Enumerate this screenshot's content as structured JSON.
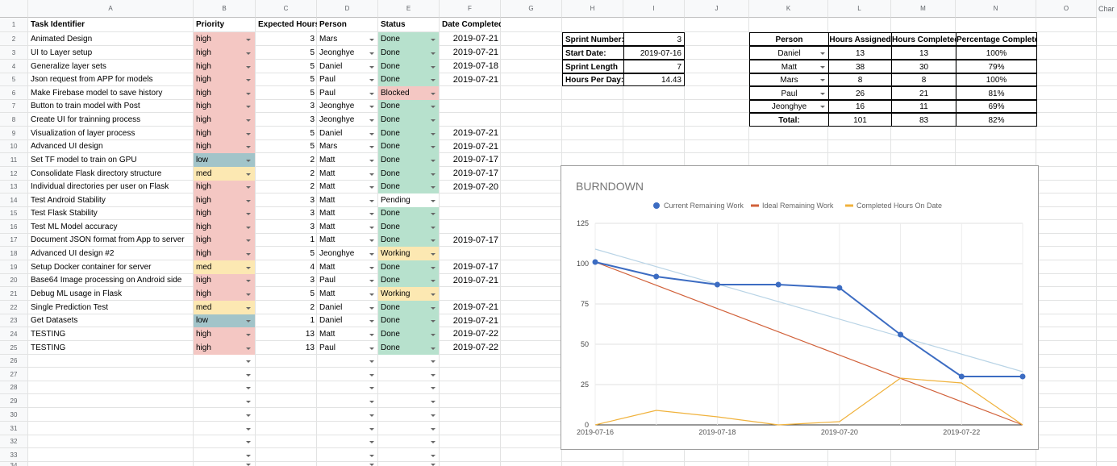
{
  "columns": [
    "A",
    "B",
    "C",
    "D",
    "E",
    "F",
    "G",
    "H",
    "I",
    "J",
    "K",
    "L",
    "M",
    "N",
    "O"
  ],
  "corner_text": "Char",
  "row_numbers": [
    "1",
    "2",
    "3",
    "4",
    "5",
    "6",
    "7",
    "8",
    "9",
    "10",
    "11",
    "12",
    "13",
    "14",
    "15",
    "16",
    "17",
    "18",
    "19",
    "20",
    "21",
    "22",
    "23",
    "24",
    "25",
    "26",
    "27",
    "28",
    "29",
    "30",
    "31",
    "32",
    "33",
    "34"
  ],
  "colors": {
    "high": "#f4c7c3",
    "low": "#a2c4c9",
    "med": "#fce8b2",
    "done": "#b7e1cd",
    "blocked": "#f4c7c3",
    "working": "#fce8b2",
    "pending": "#ffffff"
  },
  "headers": [
    "Task Identifier",
    "Priority",
    "Expected Hours",
    "Person",
    "Status",
    "Date Completed"
  ],
  "tasks": [
    [
      "Animated Design",
      "high",
      "3",
      "Mars",
      "Done",
      "2019-07-21"
    ],
    [
      "UI to Layer setup",
      "high",
      "5",
      "Jeonghye",
      "Done",
      "2019-07-21"
    ],
    [
      "Generalize layer sets",
      "high",
      "5",
      "Daniel",
      "Done",
      "2019-07-18"
    ],
    [
      "Json request from APP for models",
      "high",
      "5",
      "Paul",
      "Done",
      "2019-07-21"
    ],
    [
      "Make Firebase model to save history",
      "high",
      "5",
      "Paul",
      "Blocked",
      ""
    ],
    [
      "Button to train model with Post",
      "high",
      "3",
      "Jeonghye",
      "Done",
      ""
    ],
    [
      "Create UI for trainning process",
      "high",
      "3",
      "Jeonghye",
      "Done",
      ""
    ],
    [
      "Visualization of layer process",
      "high",
      "5",
      "Daniel",
      "Done",
      "2019-07-21"
    ],
    [
      "Advanced UI design",
      "high",
      "5",
      "Mars",
      "Done",
      "2019-07-21"
    ],
    [
      "Set TF model to train on GPU",
      "low",
      "2",
      "Matt",
      "Done",
      "2019-07-17"
    ],
    [
      "Consolidate Flask directory structure",
      "med",
      "2",
      "Matt",
      "Done",
      "2019-07-17"
    ],
    [
      "Individual directories per user on Flask",
      "high",
      "2",
      "Matt",
      "Done",
      "2019-07-20"
    ],
    [
      "Test Android Stability",
      "high",
      "3",
      "Matt",
      "Pending",
      ""
    ],
    [
      "Test Flask Stability",
      "high",
      "3",
      "Matt",
      "Done",
      ""
    ],
    [
      "Test ML Model accuracy",
      "high",
      "3",
      "Matt",
      "Done",
      ""
    ],
    [
      "Document JSON format from App to server",
      "high",
      "1",
      "Matt",
      "Done",
      "2019-07-17"
    ],
    [
      "Advanced UI design #2",
      "high",
      "5",
      "Jeonghye",
      "Working",
      ""
    ],
    [
      "Setup Docker container for server",
      "med",
      "4",
      "Matt",
      "Done",
      "2019-07-17"
    ],
    [
      "Base64 Image processing on Android side",
      "high",
      "3",
      "Paul",
      "Done",
      "2019-07-21"
    ],
    [
      "Debug ML usage in Flask",
      "high",
      "5",
      "Matt",
      "Working",
      ""
    ],
    [
      "Single Prediction Test",
      "med",
      "2",
      "Daniel",
      "Done",
      "2019-07-21"
    ],
    [
      "Get Datasets",
      "low",
      "1",
      "Daniel",
      "Done",
      "2019-07-21"
    ],
    [
      "TESTING",
      "high",
      "13",
      "Matt",
      "Done",
      "2019-07-22"
    ],
    [
      "TESTING",
      "high",
      "13",
      "Paul",
      "Done",
      "2019-07-22"
    ]
  ],
  "sprint": [
    [
      "Sprint Number:",
      "3"
    ],
    [
      "Start Date:",
      "2019-07-16"
    ],
    [
      "Sprint Length",
      "7"
    ],
    [
      "Hours Per Day:",
      "14.43"
    ]
  ],
  "people_headers": [
    "Person",
    "Hours Assigned",
    "Hours Completed",
    "Percentage Complete"
  ],
  "people": [
    [
      "Daniel",
      "13",
      "13",
      "100%"
    ],
    [
      "Matt",
      "38",
      "30",
      "79%"
    ],
    [
      "Mars",
      "8",
      "8",
      "100%"
    ],
    [
      "Paul",
      "26",
      "21",
      "81%"
    ],
    [
      "Jeonghye",
      "16",
      "11",
      "69%"
    ]
  ],
  "people_total": [
    "Total:",
    "101",
    "83",
    "82%"
  ],
  "chart_data": {
    "type": "line",
    "title": "BURNDOWN",
    "x": [
      "2019-07-16",
      "2019-07-17",
      "2019-07-18",
      "2019-07-19",
      "2019-07-20",
      "2019-07-21",
      "2019-07-22",
      "2019-07-23"
    ],
    "x_tick_labels": [
      "2019-07-16",
      "2019-07-18",
      "2019-07-20",
      "2019-07-22"
    ],
    "ylim": [
      0,
      125
    ],
    "y_ticks": [
      "0",
      "25",
      "50",
      "75",
      "100",
      "125"
    ],
    "legend_position": "top",
    "grid": true,
    "series": [
      {
        "name": "Current Remaining Work",
        "color": "#3c6cc2",
        "values": [
          101,
          92,
          87,
          87,
          85,
          56,
          30,
          30
        ],
        "markers": true
      },
      {
        "name": "Ideal Remaining Work",
        "color": "#d1613a",
        "values": [
          101,
          86.57,
          72.14,
          57.71,
          43.29,
          28.86,
          14.43,
          0
        ]
      },
      {
        "name": "Completed Hours On Date",
        "color": "#f0b23c",
        "values": [
          0,
          9,
          5,
          0,
          2,
          29,
          26,
          0
        ]
      }
    ],
    "trendline": {
      "color": "#b9d4e6",
      "values": [
        109,
        33
      ]
    }
  }
}
